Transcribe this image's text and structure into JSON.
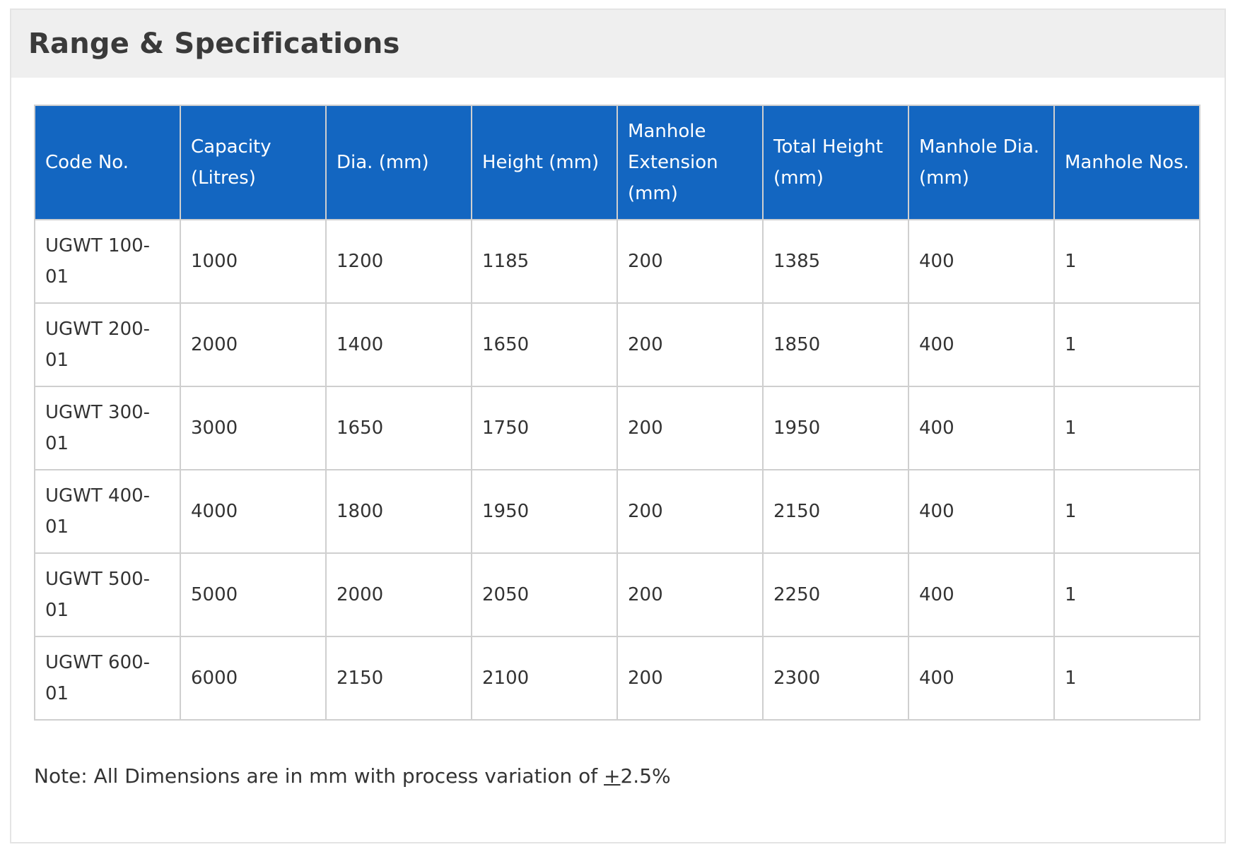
{
  "title": "Range & Specifications",
  "table": {
    "headers": [
      "Code No.",
      "Capacity (Litres)",
      "Dia. (mm)",
      "Height (mm)",
      "Manhole Extension (mm)",
      "Total Height (mm)",
      "Manhole Dia. (mm)",
      "Manhole Nos."
    ],
    "rows": [
      [
        "UGWT 100-01",
        "1000",
        "1200",
        "1185",
        "200",
        "1385",
        "400",
        "1"
      ],
      [
        "UGWT 200-01",
        "2000",
        "1400",
        "1650",
        "200",
        "1850",
        "400",
        "1"
      ],
      [
        "UGWT 300-01",
        "3000",
        "1650",
        "1750",
        "200",
        "1950",
        "400",
        "1"
      ],
      [
        "UGWT 400-01",
        "4000",
        "1800",
        "1950",
        "200",
        "2150",
        "400",
        "1"
      ],
      [
        "UGWT 500-01",
        "5000",
        "2000",
        "2050",
        "200",
        "2250",
        "400",
        "1"
      ],
      [
        "UGWT 600-01",
        "6000",
        "2150",
        "2100",
        "200",
        "2300",
        "400",
        "1"
      ]
    ]
  },
  "note": {
    "prefix": "Note: All Dimensions are in mm with process variation of ",
    "symbol": "+",
    "value": "2.5%"
  },
  "colors": {
    "header_background": "#1366c1",
    "title_bar": "#efefef"
  }
}
